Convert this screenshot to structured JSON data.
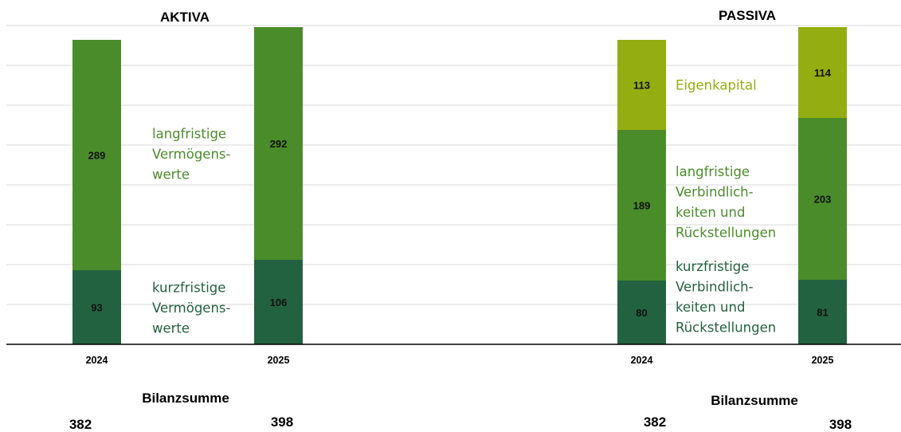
{
  "chart_data": {
    "type": "bar",
    "stacked": true,
    "ylim": [
      0,
      400
    ],
    "grid": true,
    "colors": {
      "kurz": "#236240",
      "lang": "#4a8c2a",
      "eigen": "#94ad10",
      "gridline": "#d9d9d9",
      "axis": "#000000"
    },
    "panels": [
      {
        "title": "AKTIVA",
        "categories": [
          "2024",
          "2025"
        ],
        "series": [
          {
            "key": "kurz",
            "values": [
              93,
              106
            ]
          },
          {
            "key": "lang",
            "values": [
              289,
              292
            ]
          }
        ],
        "annotations": [
          {
            "series": "lang",
            "lines": [
              "langfristige",
              "Vermögens-",
              "werte"
            ]
          },
          {
            "series": "kurz",
            "lines": [
              "kurzfristige",
              "Vermögens-",
              "werte"
            ]
          }
        ],
        "totals_label": "Bilanzsumme",
        "totals": [
          "382",
          "398"
        ]
      },
      {
        "title": "PASSIVA",
        "categories": [
          "2024",
          "2025"
        ],
        "series": [
          {
            "key": "kurz",
            "values": [
              80,
              81
            ]
          },
          {
            "key": "lang",
            "values": [
              189,
              203
            ]
          },
          {
            "key": "eigen",
            "values": [
              113,
              114
            ]
          }
        ],
        "annotations": [
          {
            "series": "eigen",
            "lines": [
              "Eigenkapital"
            ]
          },
          {
            "series": "lang",
            "lines": [
              "langfristige",
              "Verbindlich-",
              "keiten und",
              "Rückstellungen"
            ]
          },
          {
            "series": "kurz",
            "lines": [
              "kurzfristige",
              "Verbindlich-",
              "keiten und",
              "Rückstellungen"
            ]
          }
        ],
        "totals_label": "Bilanzsumme",
        "totals": [
          "382",
          "398"
        ]
      }
    ]
  }
}
